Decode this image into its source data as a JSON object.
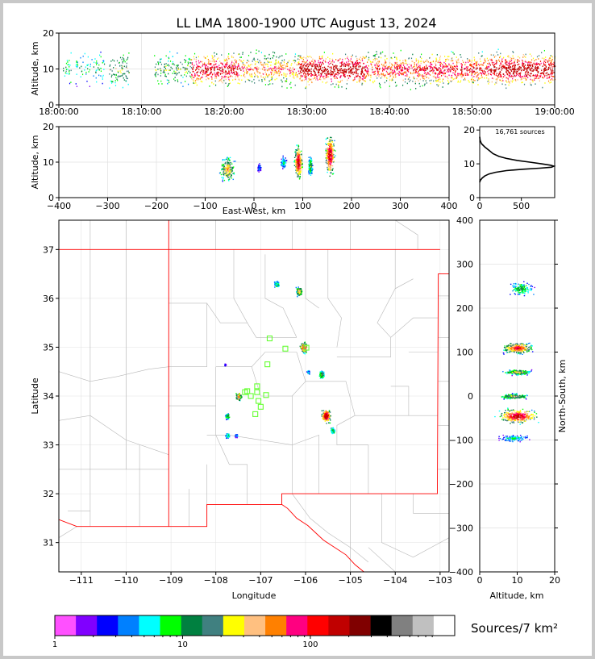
{
  "title": "LL LMA 1800-1900 UTC August 13, 2024",
  "colorbar": {
    "label": "Sources/7 km²",
    "tick_labels": [
      "1",
      "10",
      "100"
    ],
    "colors": [
      "#ff50ff",
      "#8000ff",
      "#0000ff",
      "#0080ff",
      "#00ffff",
      "#00ff00",
      "#008040",
      "#408080",
      "#ffff00",
      "#ffc080",
      "#ff8000",
      "#ff0080",
      "#ff0000",
      "#c00000",
      "#800000",
      "#000000",
      "#808080",
      "#c0c0c0",
      "#ffffff"
    ]
  },
  "chart_data": [
    {
      "id": "time-height",
      "type": "scatter",
      "ylabel": "Altitude, km",
      "ylim": [
        0,
        20
      ],
      "yticks": [
        0,
        10,
        20
      ],
      "xticks": [
        "18:00:00",
        "18:10:00",
        "18:20:00",
        "18:30:00",
        "18:40:00",
        "18:50:00",
        "19:00:00"
      ],
      "xlim_minutes": [
        0,
        60
      ],
      "activity_bands": [
        {
          "start": 0.5,
          "end": 1.5,
          "level": 0.35
        },
        {
          "start": 2.0,
          "end": 5.5,
          "level": 0.3
        },
        {
          "start": 6.0,
          "end": 8.5,
          "level": 0.5
        },
        {
          "start": 11.5,
          "end": 16,
          "level": 0.45
        },
        {
          "start": 16,
          "end": 22,
          "level": 0.9
        },
        {
          "start": 22,
          "end": 29,
          "level": 0.7
        },
        {
          "start": 29,
          "end": 37,
          "level": 1.0
        },
        {
          "start": 37,
          "end": 44,
          "level": 0.8
        },
        {
          "start": 44,
          "end": 52,
          "level": 0.85
        },
        {
          "start": 52,
          "end": 60,
          "level": 1.0
        }
      ],
      "altitude_center_km": 10
    },
    {
      "id": "east-west-height",
      "type": "scatter",
      "xlabel": "East-West, km",
      "ylabel": "Altitude, km",
      "xlim": [
        -400,
        400
      ],
      "ylim": [
        0,
        20
      ],
      "xticks": [
        -400,
        -300,
        -200,
        -100,
        0,
        100,
        200,
        300,
        400
      ],
      "yticks": [
        0,
        10,
        20
      ],
      "clusters": [
        {
          "x": -55,
          "spread": 18,
          "alt": 8,
          "alt_spread": 3,
          "density": 0.7
        },
        {
          "x": 10,
          "spread": 5,
          "alt": 8.5,
          "alt_spread": 1,
          "density": 0.2
        },
        {
          "x": 60,
          "spread": 8,
          "alt": 10,
          "alt_spread": 1.5,
          "density": 0.3
        },
        {
          "x": 90,
          "spread": 10,
          "alt": 10,
          "alt_spread": 4,
          "density": 1.0
        },
        {
          "x": 115,
          "spread": 5,
          "alt": 9,
          "alt_spread": 2.5,
          "density": 0.5
        },
        {
          "x": 155,
          "spread": 12,
          "alt": 12,
          "alt_spread": 5,
          "density": 1.0
        }
      ]
    },
    {
      "id": "altitude-histogram",
      "type": "line",
      "annotation": "16,761 sources",
      "xlim": [
        0,
        900
      ],
      "ylim": [
        0,
        21
      ],
      "xticks": [
        0,
        500
      ],
      "yticks": [
        0,
        10,
        20
      ],
      "points": [
        [
          0,
          18
        ],
        [
          5,
          17
        ],
        [
          20,
          16
        ],
        [
          60,
          15
        ],
        [
          110,
          14
        ],
        [
          160,
          13
        ],
        [
          230,
          12.2
        ],
        [
          320,
          11.6
        ],
        [
          450,
          11.0
        ],
        [
          600,
          10.5
        ],
        [
          740,
          10.0
        ],
        [
          850,
          9.6
        ],
        [
          890,
          9.3
        ],
        [
          860,
          9.0
        ],
        [
          720,
          8.7
        ],
        [
          520,
          8.4
        ],
        [
          320,
          8.0
        ],
        [
          190,
          7.5
        ],
        [
          110,
          7.0
        ],
        [
          60,
          6.4
        ],
        [
          30,
          5.8
        ],
        [
          10,
          5.2
        ],
        [
          3,
          4.8
        ],
        [
          0,
          4.5
        ]
      ]
    },
    {
      "id": "plan-view",
      "type": "scatter",
      "xlabel": "Longitude",
      "ylabel": "Latitude",
      "xlim": [
        -111.5,
        -102.8
      ],
      "ylim": [
        30.4,
        37.6
      ],
      "xticks": [
        -111,
        -110,
        -109,
        -108,
        -107,
        -106,
        -105,
        -104,
        -103
      ],
      "yticks": [
        31,
        32,
        33,
        34,
        35,
        36,
        37
      ],
      "clusters": [
        {
          "lon": -106.65,
          "lat": 36.3,
          "spread": 0.07,
          "density": 0.3
        },
        {
          "lon": -106.15,
          "lat": 36.15,
          "spread": 0.09,
          "density": 0.6
        },
        {
          "lon": -106.05,
          "lat": 35.0,
          "spread": 0.1,
          "density": 0.8
        },
        {
          "lon": -105.65,
          "lat": 34.45,
          "spread": 0.07,
          "density": 0.5
        },
        {
          "lon": -107.5,
          "lat": 34.0,
          "spread": 0.08,
          "density": 0.7
        },
        {
          "lon": -107.75,
          "lat": 33.6,
          "spread": 0.06,
          "density": 0.4
        },
        {
          "lon": -105.55,
          "lat": 33.6,
          "spread": 0.12,
          "density": 1.0
        },
        {
          "lon": -105.4,
          "lat": 33.3,
          "spread": 0.06,
          "density": 0.4
        },
        {
          "lon": -107.75,
          "lat": 33.2,
          "spread": 0.05,
          "density": 0.3
        },
        {
          "lon": -107.55,
          "lat": 33.2,
          "spread": 0.04,
          "density": 0.2
        },
        {
          "lon": -107.8,
          "lat": 34.65,
          "spread": 0.02,
          "density": 0.1
        },
        {
          "lon": -105.95,
          "lat": 34.5,
          "spread": 0.04,
          "density": 0.2
        }
      ],
      "stations": [
        [
          -106.8,
          35.18
        ],
        [
          -106.45,
          34.97
        ],
        [
          -105.98,
          34.99
        ],
        [
          -106.85,
          34.65
        ],
        [
          -107.35,
          34.08
        ],
        [
          -107.22,
          34.0
        ],
        [
          -107.08,
          34.2
        ],
        [
          -107.08,
          34.08
        ],
        [
          -106.88,
          34.02
        ],
        [
          -107.05,
          33.9
        ],
        [
          -107.0,
          33.78
        ],
        [
          -107.12,
          33.63
        ],
        [
          -107.3,
          34.1
        ]
      ]
    },
    {
      "id": "north-south-height",
      "type": "scatter",
      "xlabel": "Altitude, km",
      "ylabel": "North-South, km",
      "xlim": [
        0,
        20
      ],
      "ylim": [
        -400,
        400
      ],
      "xticks": [
        0,
        10,
        20
      ],
      "yticks": [
        -400,
        -300,
        -200,
        -100,
        0,
        100,
        200,
        300,
        400
      ],
      "clusters": [
        {
          "ns": 245,
          "spread": 20,
          "alt": 11,
          "alt_spread": 2.5,
          "density": 0.4
        },
        {
          "ns": 110,
          "spread": 15,
          "alt": 10,
          "alt_spread": 3,
          "density": 0.9
        },
        {
          "ns": 55,
          "spread": 8,
          "alt": 10,
          "alt_spread": 3,
          "density": 0.6
        },
        {
          "ns": 0,
          "spread": 8,
          "alt": 9,
          "alt_spread": 3,
          "density": 0.6
        },
        {
          "ns": -45,
          "spread": 20,
          "alt": 10,
          "alt_spread": 4,
          "density": 1.0
        },
        {
          "ns": -95,
          "spread": 10,
          "alt": 9,
          "alt_spread": 3,
          "density": 0.3
        }
      ]
    }
  ]
}
